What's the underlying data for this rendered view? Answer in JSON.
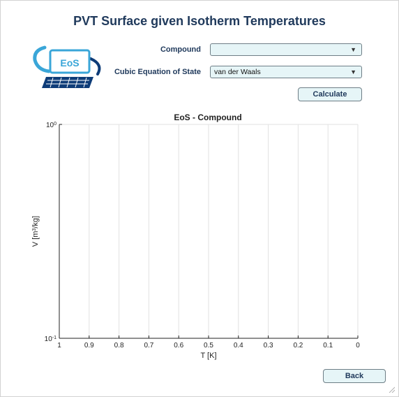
{
  "window": {
    "title": "PVT Surface given Isotherm Temperatures"
  },
  "logo": {
    "text": "EoS"
  },
  "form": {
    "compound_label": "Compound",
    "compound_value": "",
    "eos_label": "Cubic Equation of State",
    "eos_value": "van der Waals",
    "calculate_label": "Calculate"
  },
  "footer": {
    "back_label": "Back"
  },
  "colors": {
    "title": "#203a5c",
    "control_bg": "#e6f5f7",
    "grid": "#e2e2e2"
  },
  "chart_data": {
    "type": "line",
    "title": "EoS - Compound",
    "xlabel": "T [K]",
    "ylabel_base": "V [m",
    "ylabel_exp": "3",
    "ylabel_end": "/kg]",
    "xlim": [
      1,
      0
    ],
    "x_reversed": true,
    "x_ticks": [
      1,
      0.9,
      0.8,
      0.7,
      0.6,
      0.5,
      0.4,
      0.3,
      0.2,
      0.1,
      0
    ],
    "x_tick_labels": [
      "1",
      "0.9",
      "0.8",
      "0.7",
      "0.6",
      "0.5",
      "0.4",
      "0.3",
      "0.2",
      "0.1",
      "0"
    ],
    "ylim": [
      0.1,
      1
    ],
    "y_scale": "log",
    "y_ticks": [
      {
        "base": "10",
        "exp": "0",
        "value": 1
      },
      {
        "base": "10",
        "exp": "-1",
        "value": 0.1
      }
    ],
    "grid": true,
    "series": []
  }
}
